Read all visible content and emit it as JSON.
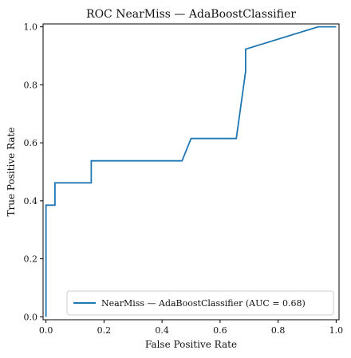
{
  "chart_data": {
    "type": "line",
    "title": "ROC NearMiss — AdaBoostClassifier",
    "xlabel": "False Positive Rate",
    "ylabel": "True Positive Rate",
    "xlim": [
      -0.01,
      1.01
    ],
    "ylim": [
      -0.01,
      1.01
    ],
    "xticks": [
      0.0,
      0.2,
      0.4,
      0.6,
      0.8,
      1.0
    ],
    "yticks": [
      0.0,
      0.2,
      0.4,
      0.6,
      0.8,
      1.0
    ],
    "xtick_labels": [
      "0.0",
      "0.2",
      "0.4",
      "0.6",
      "0.8",
      "1.0"
    ],
    "ytick_labels": [
      "0.0",
      "0.2",
      "0.4",
      "0.6",
      "0.8",
      "1.0"
    ],
    "grid": false,
    "legend_position": "lower-right",
    "series": [
      {
        "name": "NearMiss — AdaBoostClassifier (AUC = 0.68)",
        "color": "#1f77b4",
        "x": [
          0.0,
          0.0,
          0.0,
          0.031,
          0.031,
          0.156,
          0.156,
          0.469,
          0.5,
          0.656,
          0.688,
          0.688,
          0.688,
          0.938,
          1.0
        ],
        "y": [
          0.0,
          0.0,
          0.385,
          0.385,
          0.462,
          0.462,
          0.538,
          0.538,
          0.615,
          0.615,
          0.846,
          0.923,
          0.923,
          1.0,
          1.0
        ]
      }
    ]
  }
}
